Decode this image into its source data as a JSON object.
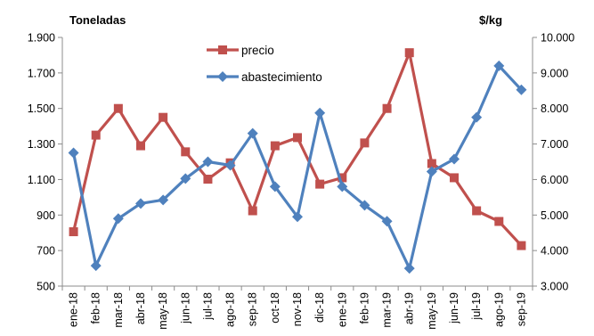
{
  "chart_data": {
    "type": "line",
    "left_axis_title": "Toneladas",
    "right_axis_title": "$/kg",
    "categories": [
      "ene-18",
      "feb-18",
      "mar-18",
      "abr-18",
      "may-18",
      "jun-18",
      "jul-18",
      "ago-18",
      "sep-18",
      "oct-18",
      "nov-18",
      "dic-18",
      "ene-19",
      "feb-19",
      "mar-19",
      "abr-19",
      "may-19",
      "jun-19",
      "jul-19",
      "ago-19",
      "sep-19"
    ],
    "y_left": {
      "min": 500,
      "max": 1900,
      "ticks": [
        500,
        700,
        900,
        1100,
        1300,
        1500,
        1700,
        1900
      ],
      "tick_labels": [
        "500",
        "700",
        "900",
        "1.100",
        "1.300",
        "1.500",
        "1.700",
        "1.900"
      ]
    },
    "y_right": {
      "min": 3000,
      "max": 10000,
      "ticks": [
        3000,
        4000,
        5000,
        6000,
        7000,
        8000,
        9000,
        10000
      ],
      "tick_labels": [
        "3.000",
        "4.000",
        "5.000",
        "6.000",
        "7.000",
        "8.000",
        "9.000",
        "10.000"
      ]
    },
    "series": [
      {
        "name": "precio",
        "axis": "right",
        "color": "#C0504D",
        "marker": "square",
        "values": [
          4530,
          7250,
          8000,
          6950,
          7750,
          6780,
          6010,
          6470,
          5120,
          6950,
          7180,
          5870,
          6050,
          7030,
          8000,
          9570,
          6450,
          6050,
          5120,
          4820,
          4140
        ]
      },
      {
        "name": "abastecimiento",
        "axis": "left",
        "color": "#4F81BD",
        "marker": "diamond",
        "values": [
          1250,
          615,
          880,
          965,
          985,
          1105,
          1200,
          1180,
          1360,
          1060,
          890,
          1475,
          1060,
          955,
          865,
          600,
          1145,
          1215,
          1450,
          1740,
          1605
        ]
      }
    ],
    "grid": false,
    "legend_position": "inside-top-center"
  }
}
